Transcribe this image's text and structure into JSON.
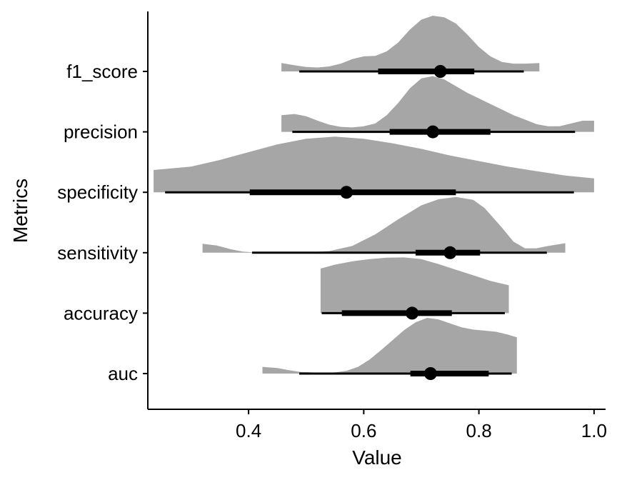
{
  "chart_data": {
    "type": "halfeye",
    "xlabel": "Value",
    "ylabel": "Metrics",
    "xlim": [
      0.225,
      1.02
    ],
    "x_ticks": [
      0.4,
      0.6,
      0.8,
      1.0
    ],
    "x_tick_labels": [
      "0.4",
      "0.6",
      "0.8",
      "1.0"
    ],
    "grid": false,
    "colors": {
      "density": "#a6a6a6",
      "interval": "#000000",
      "axis": "#000000"
    },
    "categories": [
      "auc",
      "accuracy",
      "sensitivity",
      "specificity",
      "precision",
      "f1_score"
    ],
    "series": [
      {
        "metric": "auc",
        "point": 0.716,
        "interval_66": [
          0.681,
          0.817
        ],
        "interval_95": [
          0.488,
          0.857
        ],
        "density": {
          "x": [
            0.424,
            0.45,
            0.47,
            0.49,
            0.51,
            0.53,
            0.55,
            0.57,
            0.59,
            0.61,
            0.63,
            0.65,
            0.67,
            0.69,
            0.71,
            0.73,
            0.75,
            0.77,
            0.79,
            0.81,
            0.83,
            0.85,
            0.866
          ],
          "y": [
            0.12,
            0.1,
            0.06,
            0.03,
            0.02,
            0.01,
            0.02,
            0.05,
            0.12,
            0.25,
            0.42,
            0.6,
            0.78,
            0.92,
            1.0,
            0.97,
            0.9,
            0.83,
            0.79,
            0.77,
            0.75,
            0.7,
            0.65
          ]
        }
      },
      {
        "metric": "accuracy",
        "point": 0.684,
        "interval_66": [
          0.562,
          0.753
        ],
        "interval_95": [
          0.527,
          0.845
        ],
        "density": {
          "x": [
            0.525,
            0.55,
            0.58,
            0.61,
            0.64,
            0.67,
            0.7,
            0.73,
            0.76,
            0.79,
            0.82,
            0.852
          ],
          "y": [
            0.8,
            0.87,
            0.93,
            0.97,
            0.995,
            1.0,
            0.97,
            0.88,
            0.78,
            0.68,
            0.58,
            0.5
          ]
        }
      },
      {
        "metric": "sensitivity",
        "point": 0.75,
        "interval_66": [
          0.69,
          0.802
        ],
        "interval_95": [
          0.406,
          0.918
        ],
        "density": {
          "x": [
            0.32,
            0.345,
            0.37,
            0.39,
            0.41,
            0.45,
            0.5,
            0.54,
            0.58,
            0.62,
            0.66,
            0.7,
            0.73,
            0.76,
            0.79,
            0.81,
            0.84,
            0.86,
            0.88,
            0.9,
            0.92,
            0.95
          ],
          "y": [
            0.16,
            0.13,
            0.06,
            0.02,
            0.005,
            0.0,
            0.005,
            0.03,
            0.12,
            0.33,
            0.6,
            0.85,
            0.96,
            1.0,
            0.95,
            0.8,
            0.45,
            0.2,
            0.08,
            0.08,
            0.12,
            0.17
          ]
        }
      },
      {
        "metric": "specificity",
        "point": 0.57,
        "interval_66": [
          0.402,
          0.76
        ],
        "interval_95": [
          0.255,
          0.965
        ],
        "density": {
          "x": [
            0.235,
            0.3,
            0.35,
            0.4,
            0.45,
            0.5,
            0.55,
            0.6,
            0.65,
            0.7,
            0.75,
            0.8,
            0.85,
            0.9,
            0.95,
            1.0
          ],
          "y": [
            0.4,
            0.46,
            0.58,
            0.72,
            0.86,
            0.96,
            1.0,
            0.96,
            0.88,
            0.78,
            0.66,
            0.56,
            0.46,
            0.38,
            0.3,
            0.25
          ]
        }
      },
      {
        "metric": "precision",
        "point": 0.72,
        "interval_66": [
          0.645,
          0.82
        ],
        "interval_95": [
          0.476,
          0.967
        ],
        "density": {
          "x": [
            0.457,
            0.48,
            0.5,
            0.52,
            0.54,
            0.56,
            0.58,
            0.6,
            0.62,
            0.64,
            0.66,
            0.68,
            0.7,
            0.72,
            0.74,
            0.76,
            0.78,
            0.8,
            0.82,
            0.84,
            0.86,
            0.88,
            0.9,
            0.92,
            0.94,
            0.96,
            0.98,
            1.0
          ],
          "y": [
            0.3,
            0.32,
            0.28,
            0.2,
            0.13,
            0.09,
            0.08,
            0.1,
            0.15,
            0.3,
            0.52,
            0.78,
            0.96,
            1.0,
            0.94,
            0.82,
            0.7,
            0.6,
            0.5,
            0.4,
            0.3,
            0.22,
            0.14,
            0.1,
            0.1,
            0.15,
            0.2,
            0.2
          ]
        }
      },
      {
        "metric": "f1_score",
        "point": 0.733,
        "interval_66": [
          0.625,
          0.792
        ],
        "interval_95": [
          0.488,
          0.878
        ],
        "density": {
          "x": [
            0.457,
            0.48,
            0.5,
            0.52,
            0.54,
            0.56,
            0.58,
            0.6,
            0.62,
            0.64,
            0.66,
            0.68,
            0.7,
            0.72,
            0.74,
            0.76,
            0.78,
            0.8,
            0.82,
            0.84,
            0.86,
            0.88,
            0.905
          ],
          "y": [
            0.15,
            0.11,
            0.08,
            0.07,
            0.09,
            0.14,
            0.22,
            0.27,
            0.28,
            0.36,
            0.52,
            0.75,
            0.93,
            1.0,
            0.97,
            0.86,
            0.66,
            0.44,
            0.27,
            0.17,
            0.14,
            0.14,
            0.15
          ]
        }
      }
    ]
  }
}
